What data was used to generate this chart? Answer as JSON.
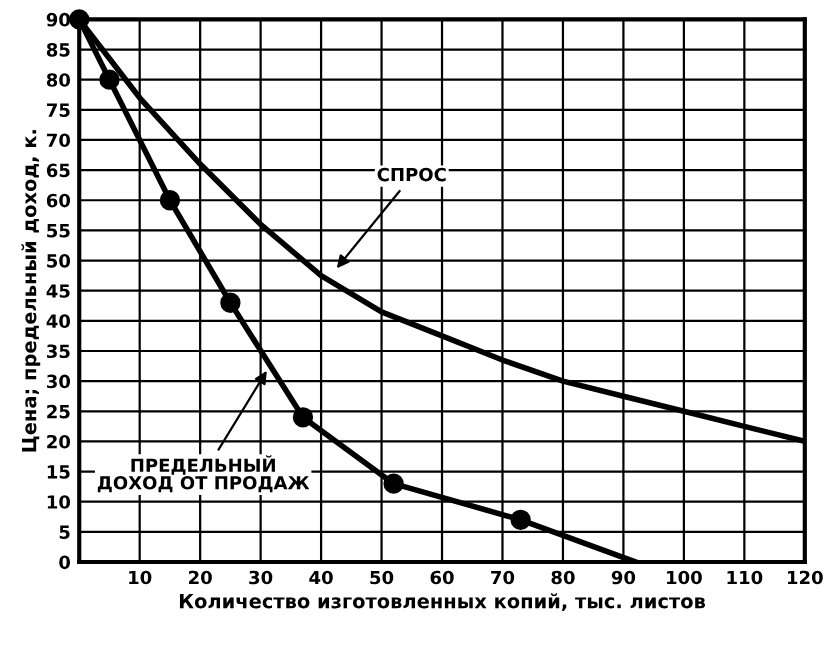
{
  "chart_data": {
    "type": "line",
    "xlabel": "Количество изготовленных копий, тыс. листов",
    "ylabel": "Цена; предельный доход, к.",
    "series": [
      {
        "color": "#000000",
        "marker": "none",
        "x": [
          0,
          10,
          20,
          30,
          40,
          50,
          60,
          70,
          80,
          90,
          100,
          110,
          120
        ],
        "values": [
          90,
          77,
          66,
          56,
          47.5,
          41.5,
          37.5,
          33.5,
          30,
          27.5,
          25,
          22.5,
          20
        ]
      },
      {
        "color": "#000000",
        "marker": "none",
        "x": [
          0,
          5,
          15,
          25,
          37,
          52,
          73,
          92
        ],
        "values": [
          90,
          80,
          60,
          43,
          24,
          13,
          7,
          0
        ]
      },
      {
        "type": "scatter",
        "color": "#000000",
        "marker": "circle",
        "x": [
          0,
          5,
          15,
          25,
          37,
          52,
          73
        ],
        "values": [
          90,
          80,
          60,
          43,
          24,
          13,
          7
        ]
      }
    ],
    "annotations": [
      {
        "text": "СПРОС",
        "x": 42,
        "y": 48
      },
      {
        "text": "ПРЕДЕЛЬНЫЙ\nДОХОД ОТ ПРОДАЖ",
        "x": 31.5,
        "y": 32.5
      }
    ],
    "xlim": [
      0,
      120
    ],
    "ylim": [
      0,
      90
    ],
    "xticks": [
      {
        "value": 0,
        "label": null
      },
      10,
      20,
      30,
      40,
      50,
      60,
      70,
      80,
      90,
      100,
      110,
      120
    ],
    "yticks": [
      0,
      5,
      10,
      15,
      20,
      25,
      30,
      35,
      40,
      45,
      50,
      55,
      60,
      65,
      70,
      75,
      80,
      85,
      90
    ],
    "grid": true,
    "legend": false
  }
}
